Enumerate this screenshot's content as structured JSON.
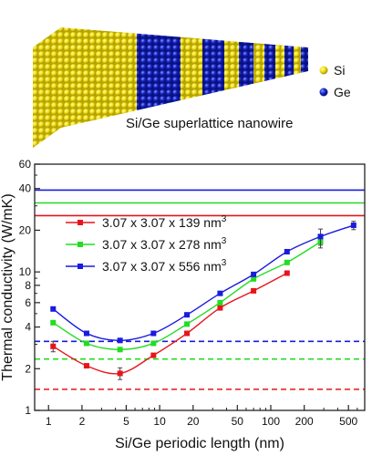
{
  "illustration": {
    "caption": "Si/Ge superlattice nanowire",
    "legend": [
      {
        "label": "Si",
        "color": "#f0e020"
      },
      {
        "label": "Ge",
        "color": "#1a24c8"
      }
    ],
    "atom_colors": {
      "si": "#f0e020",
      "ge": "#1a24c8"
    }
  },
  "chart_data": {
    "type": "line",
    "xlabel": "Si/Ge periodic length (nm)",
    "ylabel": "Thermal conductivity (W/mK)",
    "xscale": "log",
    "yscale": "log",
    "xlim": [
      0.75,
      700
    ],
    "ylim": [
      1,
      60
    ],
    "xticks": [
      1,
      2,
      5,
      10,
      20,
      50,
      100,
      200,
      500
    ],
    "xtick_labels": [
      "1",
      "2",
      "5",
      "10",
      "20",
      "50",
      "100",
      "200",
      "500"
    ],
    "yticks": [
      1,
      2,
      4,
      6,
      8,
      10,
      20,
      40,
      60
    ],
    "ytick_labels": [
      "1",
      "2",
      "4",
      "6",
      "8",
      "10",
      "20",
      "40",
      "60"
    ],
    "legend_position": "left-middle",
    "series": [
      {
        "name": "3.07 x 3.07 x 139 nm",
        "name_sup": "3",
        "color": "#e8141c",
        "x": [
          1.1,
          2.2,
          4.4,
          8.8,
          17.6,
          35,
          70,
          140
        ],
        "y": [
          2.9,
          2.1,
          1.85,
          2.5,
          3.6,
          5.5,
          7.3,
          9.8
        ],
        "err": [
          0.25,
          0,
          0.18,
          0,
          0,
          0,
          0,
          0
        ],
        "bulk": 25.5,
        "limit": 1.42
      },
      {
        "name": "3.07 x 3.07 x 278 nm",
        "name_sup": "3",
        "color": "#22dd22",
        "x": [
          1.1,
          2.2,
          4.4,
          8.8,
          17.6,
          35,
          70,
          140,
          280
        ],
        "y": [
          4.3,
          3.05,
          2.75,
          3.05,
          4.2,
          6.0,
          8.9,
          11.7,
          16.5
        ],
        "err": [
          0,
          0,
          0,
          0,
          0,
          0,
          0,
          0,
          1.6
        ],
        "bulk": 31.5,
        "limit": 2.35
      },
      {
        "name": "3.07 x 3.07 x 556 nm",
        "name_sup": "3",
        "color": "#1a1ae0",
        "x": [
          1.1,
          2.2,
          4.4,
          8.8,
          17.6,
          35,
          70,
          140,
          280,
          556
        ],
        "y": [
          5.4,
          3.6,
          3.2,
          3.6,
          4.9,
          7.0,
          9.6,
          14.0,
          18.0,
          21.7
        ],
        "err": [
          0,
          0,
          0,
          0,
          0,
          0,
          0,
          0,
          2.4,
          1.5
        ],
        "bulk": 39,
        "limit": 3.15
      }
    ]
  }
}
